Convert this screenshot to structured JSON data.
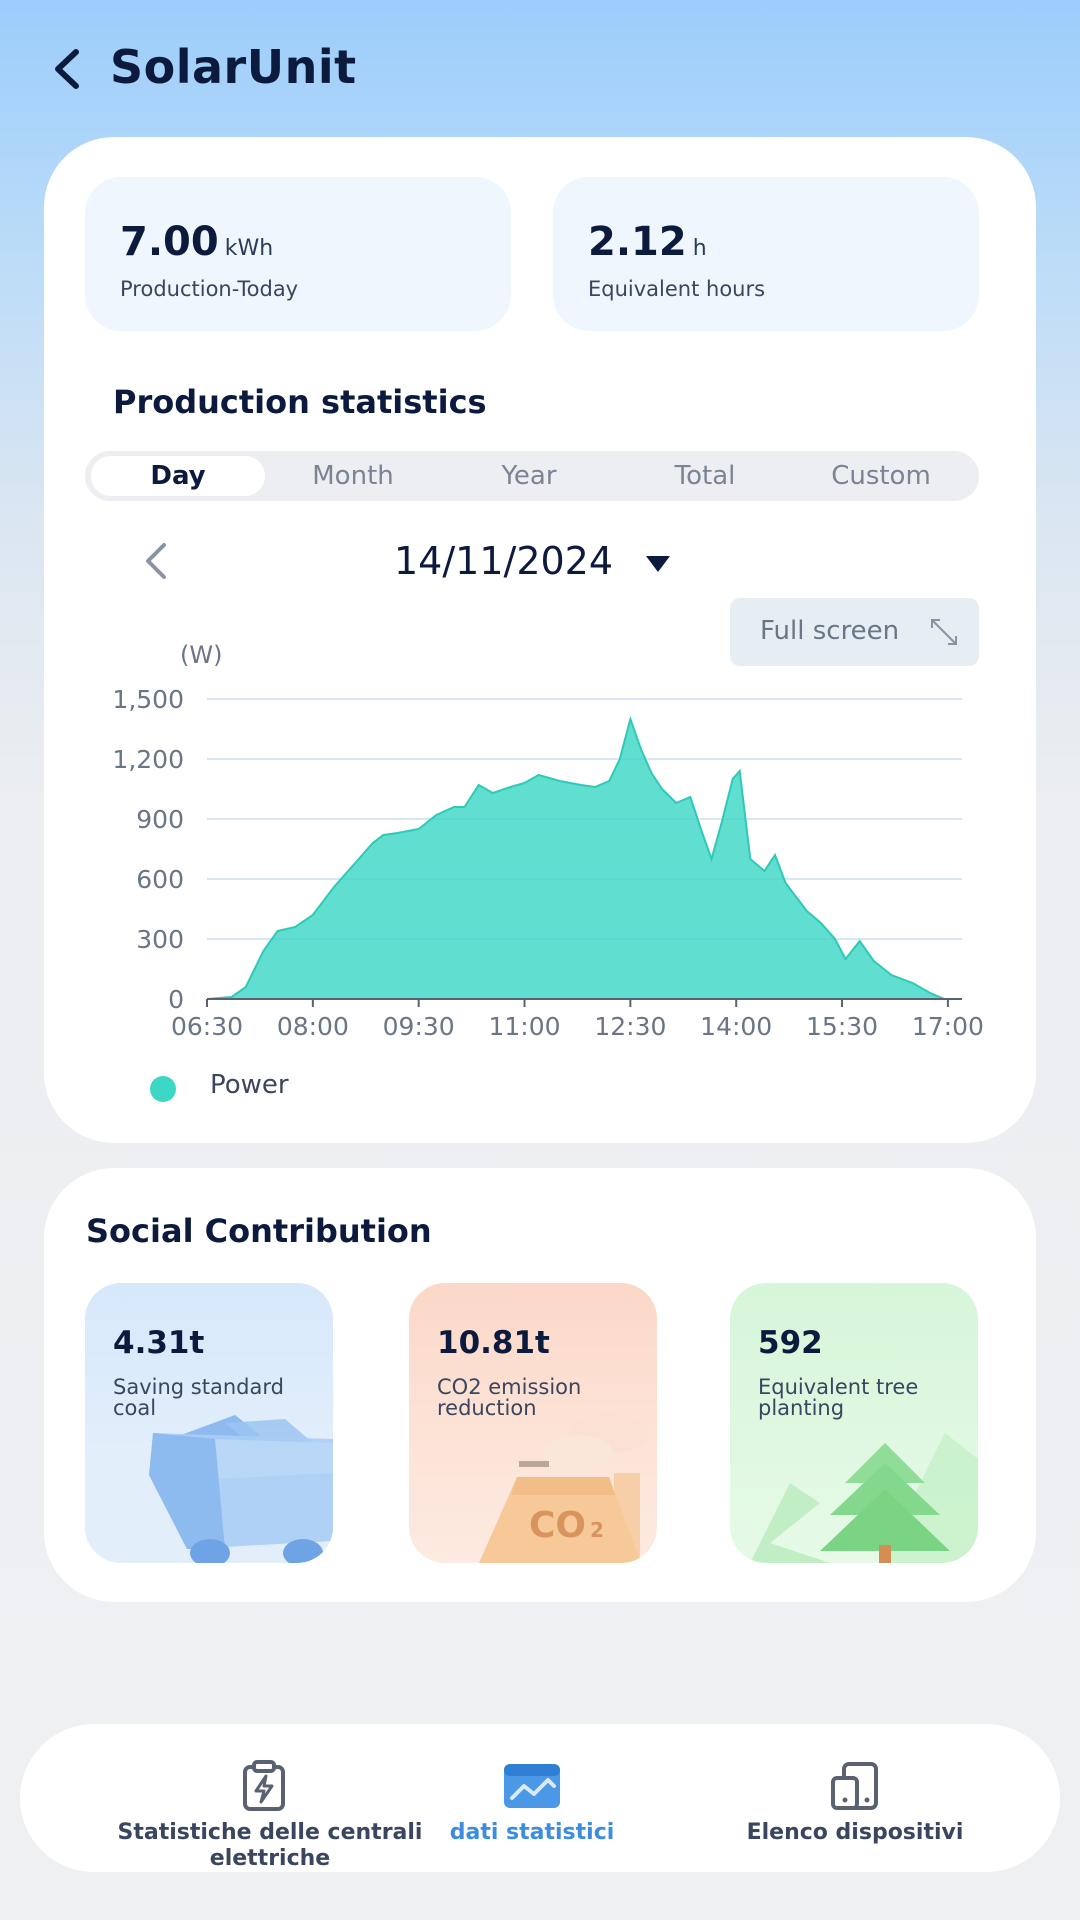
{
  "header": {
    "title": "SolarUnit"
  },
  "kpis": [
    {
      "value": "7.00",
      "unit": "kWh",
      "label": "Production-Today"
    },
    {
      "value": "2.12",
      "unit": "h",
      "label": "Equivalent hours"
    }
  ],
  "stats": {
    "title": "Production statistics",
    "tabs": [
      "Day",
      "Month",
      "Year",
      "Total",
      "Custom"
    ],
    "active_tab": "Day",
    "date": "14/11/2024",
    "fullscreen_label": "Full screen"
  },
  "chart_data": {
    "type": "area",
    "title": "",
    "ylabel": "(W)",
    "xlabel": "",
    "ylim": [
      0,
      1500
    ],
    "yticks": [
      "0",
      "300",
      "600",
      "900",
      "1,200",
      "1,500"
    ],
    "xticks": [
      "06:30",
      "08:00",
      "09:30",
      "11:00",
      "12:30",
      "14:00",
      "15:30",
      "17:00"
    ],
    "x_range_hours": [
      6.5,
      17.2
    ],
    "legend": "bottom-left",
    "grid": true,
    "series": [
      {
        "name": "Power",
        "color": "#3dd7c6",
        "points": [
          [
            6.5,
            0
          ],
          [
            6.85,
            10
          ],
          [
            7.05,
            60
          ],
          [
            7.3,
            240
          ],
          [
            7.5,
            340
          ],
          [
            7.75,
            360
          ],
          [
            8.0,
            420
          ],
          [
            8.3,
            560
          ],
          [
            8.6,
            680
          ],
          [
            8.85,
            780
          ],
          [
            9.0,
            820
          ],
          [
            9.2,
            830
          ],
          [
            9.5,
            850
          ],
          [
            9.75,
            920
          ],
          [
            10.0,
            960
          ],
          [
            10.15,
            960
          ],
          [
            10.35,
            1070
          ],
          [
            10.55,
            1030
          ],
          [
            10.8,
            1060
          ],
          [
            11.0,
            1080
          ],
          [
            11.2,
            1120
          ],
          [
            11.5,
            1090
          ],
          [
            11.8,
            1070
          ],
          [
            12.0,
            1060
          ],
          [
            12.2,
            1090
          ],
          [
            12.35,
            1200
          ],
          [
            12.5,
            1400
          ],
          [
            12.65,
            1250
          ],
          [
            12.8,
            1130
          ],
          [
            12.95,
            1050
          ],
          [
            13.15,
            980
          ],
          [
            13.35,
            1010
          ],
          [
            13.5,
            850
          ],
          [
            13.65,
            700
          ],
          [
            13.8,
            890
          ],
          [
            13.95,
            1100
          ],
          [
            14.05,
            1140
          ],
          [
            14.2,
            700
          ],
          [
            14.4,
            640
          ],
          [
            14.55,
            720
          ],
          [
            14.7,
            580
          ],
          [
            15.0,
            440
          ],
          [
            15.2,
            380
          ],
          [
            15.4,
            300
          ],
          [
            15.55,
            200
          ],
          [
            15.75,
            290
          ],
          [
            15.95,
            190
          ],
          [
            16.2,
            120
          ],
          [
            16.5,
            80
          ],
          [
            16.75,
            30
          ],
          [
            16.95,
            0
          ],
          [
            17.0,
            0
          ]
        ]
      }
    ]
  },
  "social": {
    "title": "Social Contribution",
    "tiles": [
      {
        "value": "4.31t",
        "label": "Saving standard coal"
      },
      {
        "value": "10.81t",
        "label": "CO2 emission reduction"
      },
      {
        "value": "592",
        "label": "Equivalent tree planting"
      }
    ],
    "co2_art_text": "CO",
    "co2_art_sub": "2"
  },
  "nav": {
    "items": [
      {
        "label": "Statistiche delle centrali elettriche",
        "icon": "power-plant-icon"
      },
      {
        "label": "dati statistici",
        "icon": "statistics-icon"
      },
      {
        "label": "Elenco dispositivi",
        "icon": "devices-icon"
      }
    ],
    "active_index": 1
  }
}
